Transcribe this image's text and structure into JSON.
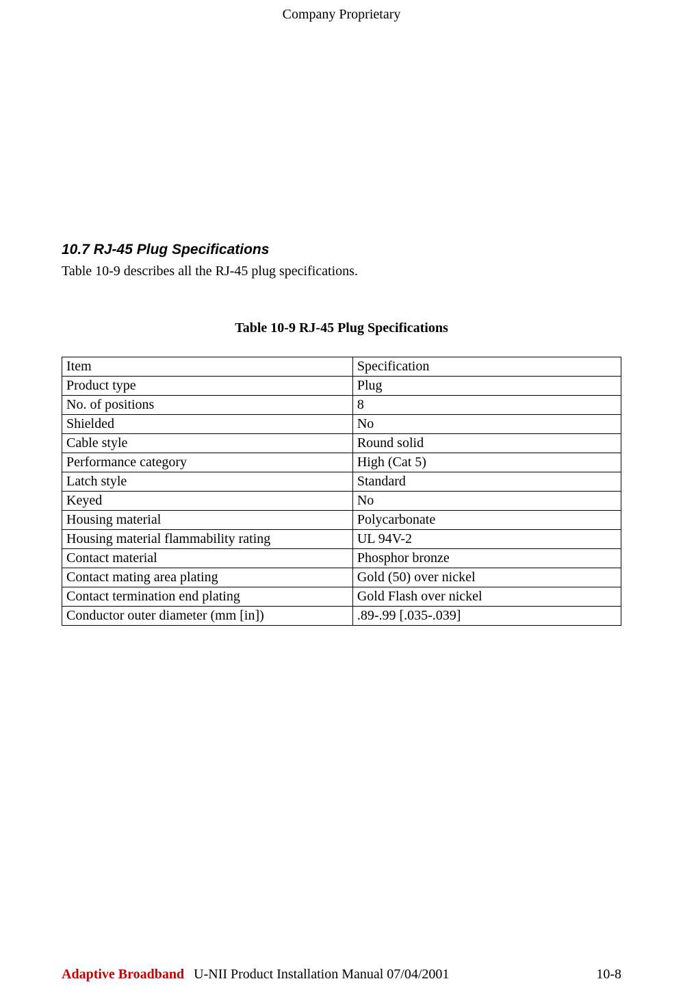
{
  "classification": "Company Proprietary",
  "section": {
    "heading": "10.7 RJ-45 Plug Specifications",
    "intro": "Table 10-9 describes all the RJ-45 plug specifications."
  },
  "table": {
    "caption": "Table 10-9  RJ-45 Plug Specifications",
    "type": "table",
    "columns": [
      "Item",
      "Specification"
    ],
    "rows": [
      [
        "Item",
        "Specification"
      ],
      [
        "Product type",
        "Plug"
      ],
      [
        "No. of positions",
        "8"
      ],
      [
        "Shielded",
        "No"
      ],
      [
        "Cable style",
        "Round solid"
      ],
      [
        "Performance category",
        "High (Cat 5)"
      ],
      [
        "Latch style",
        "Standard"
      ],
      [
        "Keyed",
        "No"
      ],
      [
        "Housing material",
        "Polycarbonate"
      ],
      [
        "Housing material flammability rating",
        "UL 94V-2"
      ],
      [
        "Contact material",
        "Phosphor bronze"
      ],
      [
        "Contact mating area plating",
        "Gold (50) over nickel"
      ],
      [
        "Contact termination end plating",
        "Gold Flash over nickel"
      ],
      [
        "Conductor outer diameter (mm [in])",
        ".89-.99 [.035-.039]"
      ]
    ],
    "border_color": "#000000",
    "background_color": "#ffffff",
    "font_size": 20,
    "col_widths": [
      "52%",
      "48%"
    ]
  },
  "footer": {
    "company": "Adaptive Broadband",
    "doc_title": "U-NII Product Installation Manual  07/04/2001",
    "page_number": "10-8",
    "company_color": "#c00000"
  }
}
